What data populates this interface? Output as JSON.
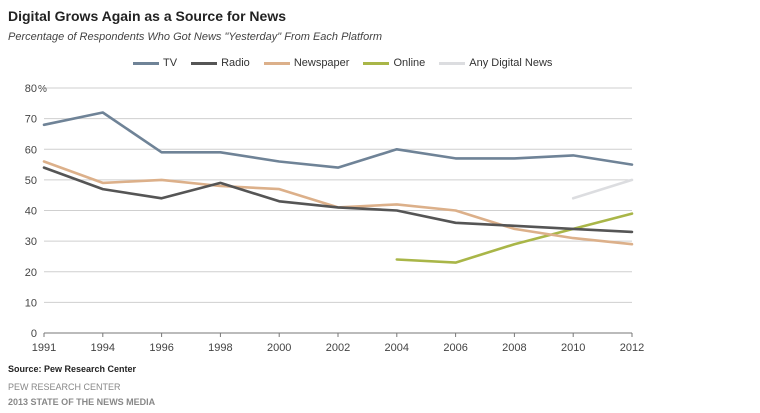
{
  "chart_data": {
    "type": "line",
    "title": "Digital Grows Again as a Source for News",
    "subtitle": "Percentage of Respondents Who Got News \"Yesterday\" From Each Platform",
    "x": [
      "1991",
      "1994",
      "1996",
      "1998",
      "2000",
      "2002",
      "2004",
      "2006",
      "2008",
      "2010",
      "2012"
    ],
    "yticks": [
      "0",
      "10",
      "20",
      "30",
      "40",
      "50",
      "60",
      "70",
      "80"
    ],
    "yunit": "%",
    "ylim": [
      0,
      80
    ],
    "series": [
      {
        "name": "TV",
        "color": "#6f8397",
        "values": [
          68,
          72,
          59,
          59,
          56,
          54,
          60,
          57,
          57,
          58,
          55
        ]
      },
      {
        "name": "Radio",
        "color": "#555555",
        "values": [
          54,
          47,
          44,
          49,
          43,
          41,
          40,
          36,
          35,
          34,
          33
        ]
      },
      {
        "name": "Newspaper",
        "color": "#dcb08a",
        "values": [
          56,
          49,
          50,
          48,
          47,
          41,
          42,
          40,
          34,
          31,
          29
        ]
      },
      {
        "name": "Online",
        "color": "#a9b648",
        "values": [
          null,
          null,
          null,
          null,
          null,
          null,
          24,
          23,
          29,
          34,
          39
        ]
      },
      {
        "name": "Any Digital News",
        "color": "#dcdde0",
        "values": [
          null,
          null,
          null,
          null,
          null,
          null,
          null,
          null,
          null,
          44,
          50
        ]
      }
    ]
  },
  "footer": {
    "source": "Source: Pew Research Center",
    "org": "PEW RESEARCH CENTER",
    "report": "2013 STATE OF THE NEWS MEDIA"
  }
}
